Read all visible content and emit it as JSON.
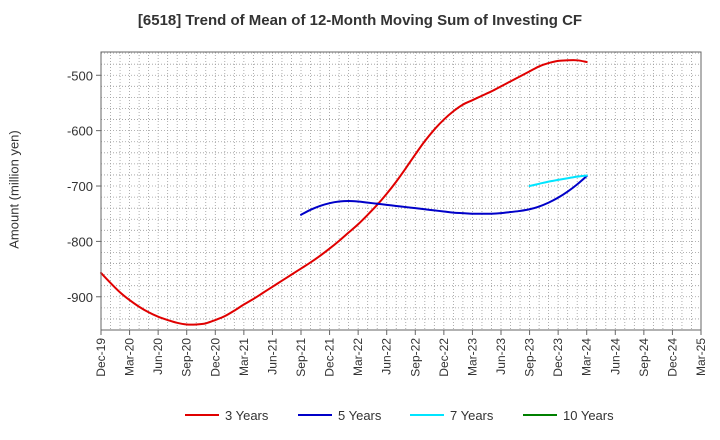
{
  "chart_data": {
    "type": "line",
    "title": "[6518]  Trend of Mean of 12-Month Moving Sum of Investing CF",
    "xlabel": "",
    "ylabel": "Amount (million yen)",
    "categories": [
      "Dec-19",
      "Mar-20",
      "Jun-20",
      "Sep-20",
      "Dec-20",
      "Mar-21",
      "Jun-21",
      "Sep-21",
      "Dec-21",
      "Mar-22",
      "Jun-22",
      "Sep-22",
      "Dec-22",
      "Mar-23",
      "Jun-23",
      "Sep-23",
      "Dec-23",
      "Mar-24",
      "Jun-24",
      "Sep-24",
      "Dec-24",
      "Mar-25"
    ],
    "y_ticks": [
      -500,
      -600,
      -700,
      -800,
      -900
    ],
    "ylim": [
      -960,
      -458
    ],
    "grid": true,
    "legend_position": "bottom",
    "series": [
      {
        "name": "3 Years",
        "color": "#e00000",
        "x": [
          "Dec-19",
          "Jan-20",
          "Feb-20",
          "Mar-20",
          "Apr-20",
          "May-20",
          "Jun-20",
          "Jul-20",
          "Aug-20",
          "Sep-20",
          "Oct-20",
          "Nov-20",
          "Dec-20",
          "Jan-21",
          "Feb-21",
          "Mar-21",
          "Apr-21",
          "May-21",
          "Jun-21",
          "Jul-21",
          "Aug-21",
          "Sep-21",
          "Oct-21",
          "Nov-21",
          "Dec-21",
          "Jan-22",
          "Feb-22",
          "Mar-22",
          "Apr-22",
          "May-22",
          "Jun-22",
          "Jul-22",
          "Aug-22",
          "Sep-22",
          "Oct-22",
          "Nov-22",
          "Dec-22",
          "Jan-23",
          "Feb-23",
          "Mar-23",
          "Apr-23",
          "May-23",
          "Jun-23",
          "Jul-23",
          "Aug-23",
          "Sep-23",
          "Oct-23",
          "Nov-23",
          "Dec-23",
          "Jan-24",
          "Feb-24",
          "Mar-24"
        ],
        "values": [
          -857,
          -875,
          -892,
          -906,
          -918,
          -928,
          -936,
          -942,
          -947,
          -950,
          -950,
          -948,
          -942,
          -935,
          -925,
          -914,
          -904,
          -893,
          -882,
          -871,
          -860,
          -849,
          -838,
          -826,
          -813,
          -799,
          -784,
          -769,
          -752,
          -734,
          -714,
          -692,
          -668,
          -643,
          -619,
          -598,
          -580,
          -565,
          -553,
          -545,
          -537,
          -529,
          -520,
          -511,
          -502,
          -493,
          -484,
          -478,
          -474,
          -473,
          -473,
          -476
        ]
      },
      {
        "name": "5 Years",
        "color": "#0000c8",
        "x": [
          "Sep-21",
          "Oct-21",
          "Nov-21",
          "Dec-21",
          "Jan-22",
          "Feb-22",
          "Mar-22",
          "Apr-22",
          "May-22",
          "Jun-22",
          "Jul-22",
          "Aug-22",
          "Sep-22",
          "Oct-22",
          "Nov-22",
          "Dec-22",
          "Jan-23",
          "Feb-23",
          "Mar-23",
          "Apr-23",
          "May-23",
          "Jun-23",
          "Jul-23",
          "Aug-23",
          "Sep-23",
          "Oct-23",
          "Nov-23",
          "Dec-23",
          "Jan-24",
          "Feb-24",
          "Mar-24"
        ],
        "values": [
          -752,
          -743,
          -736,
          -731,
          -728,
          -727,
          -728,
          -730,
          -732,
          -734,
          -736,
          -738,
          -740,
          -742,
          -744,
          -746,
          -748,
          -749,
          -750,
          -750,
          -750,
          -749,
          -747,
          -745,
          -742,
          -737,
          -730,
          -721,
          -710,
          -697,
          -682
        ]
      },
      {
        "name": "7 Years",
        "color": "#00e5ff",
        "x": [
          "Sep-23",
          "Oct-23",
          "Nov-23",
          "Dec-23",
          "Jan-24",
          "Feb-24",
          "Mar-24"
        ],
        "values": [
          -700,
          -696,
          -692,
          -689,
          -686,
          -683,
          -681
        ]
      },
      {
        "name": "10 Years",
        "color": "#008000",
        "x": [],
        "values": []
      }
    ]
  }
}
